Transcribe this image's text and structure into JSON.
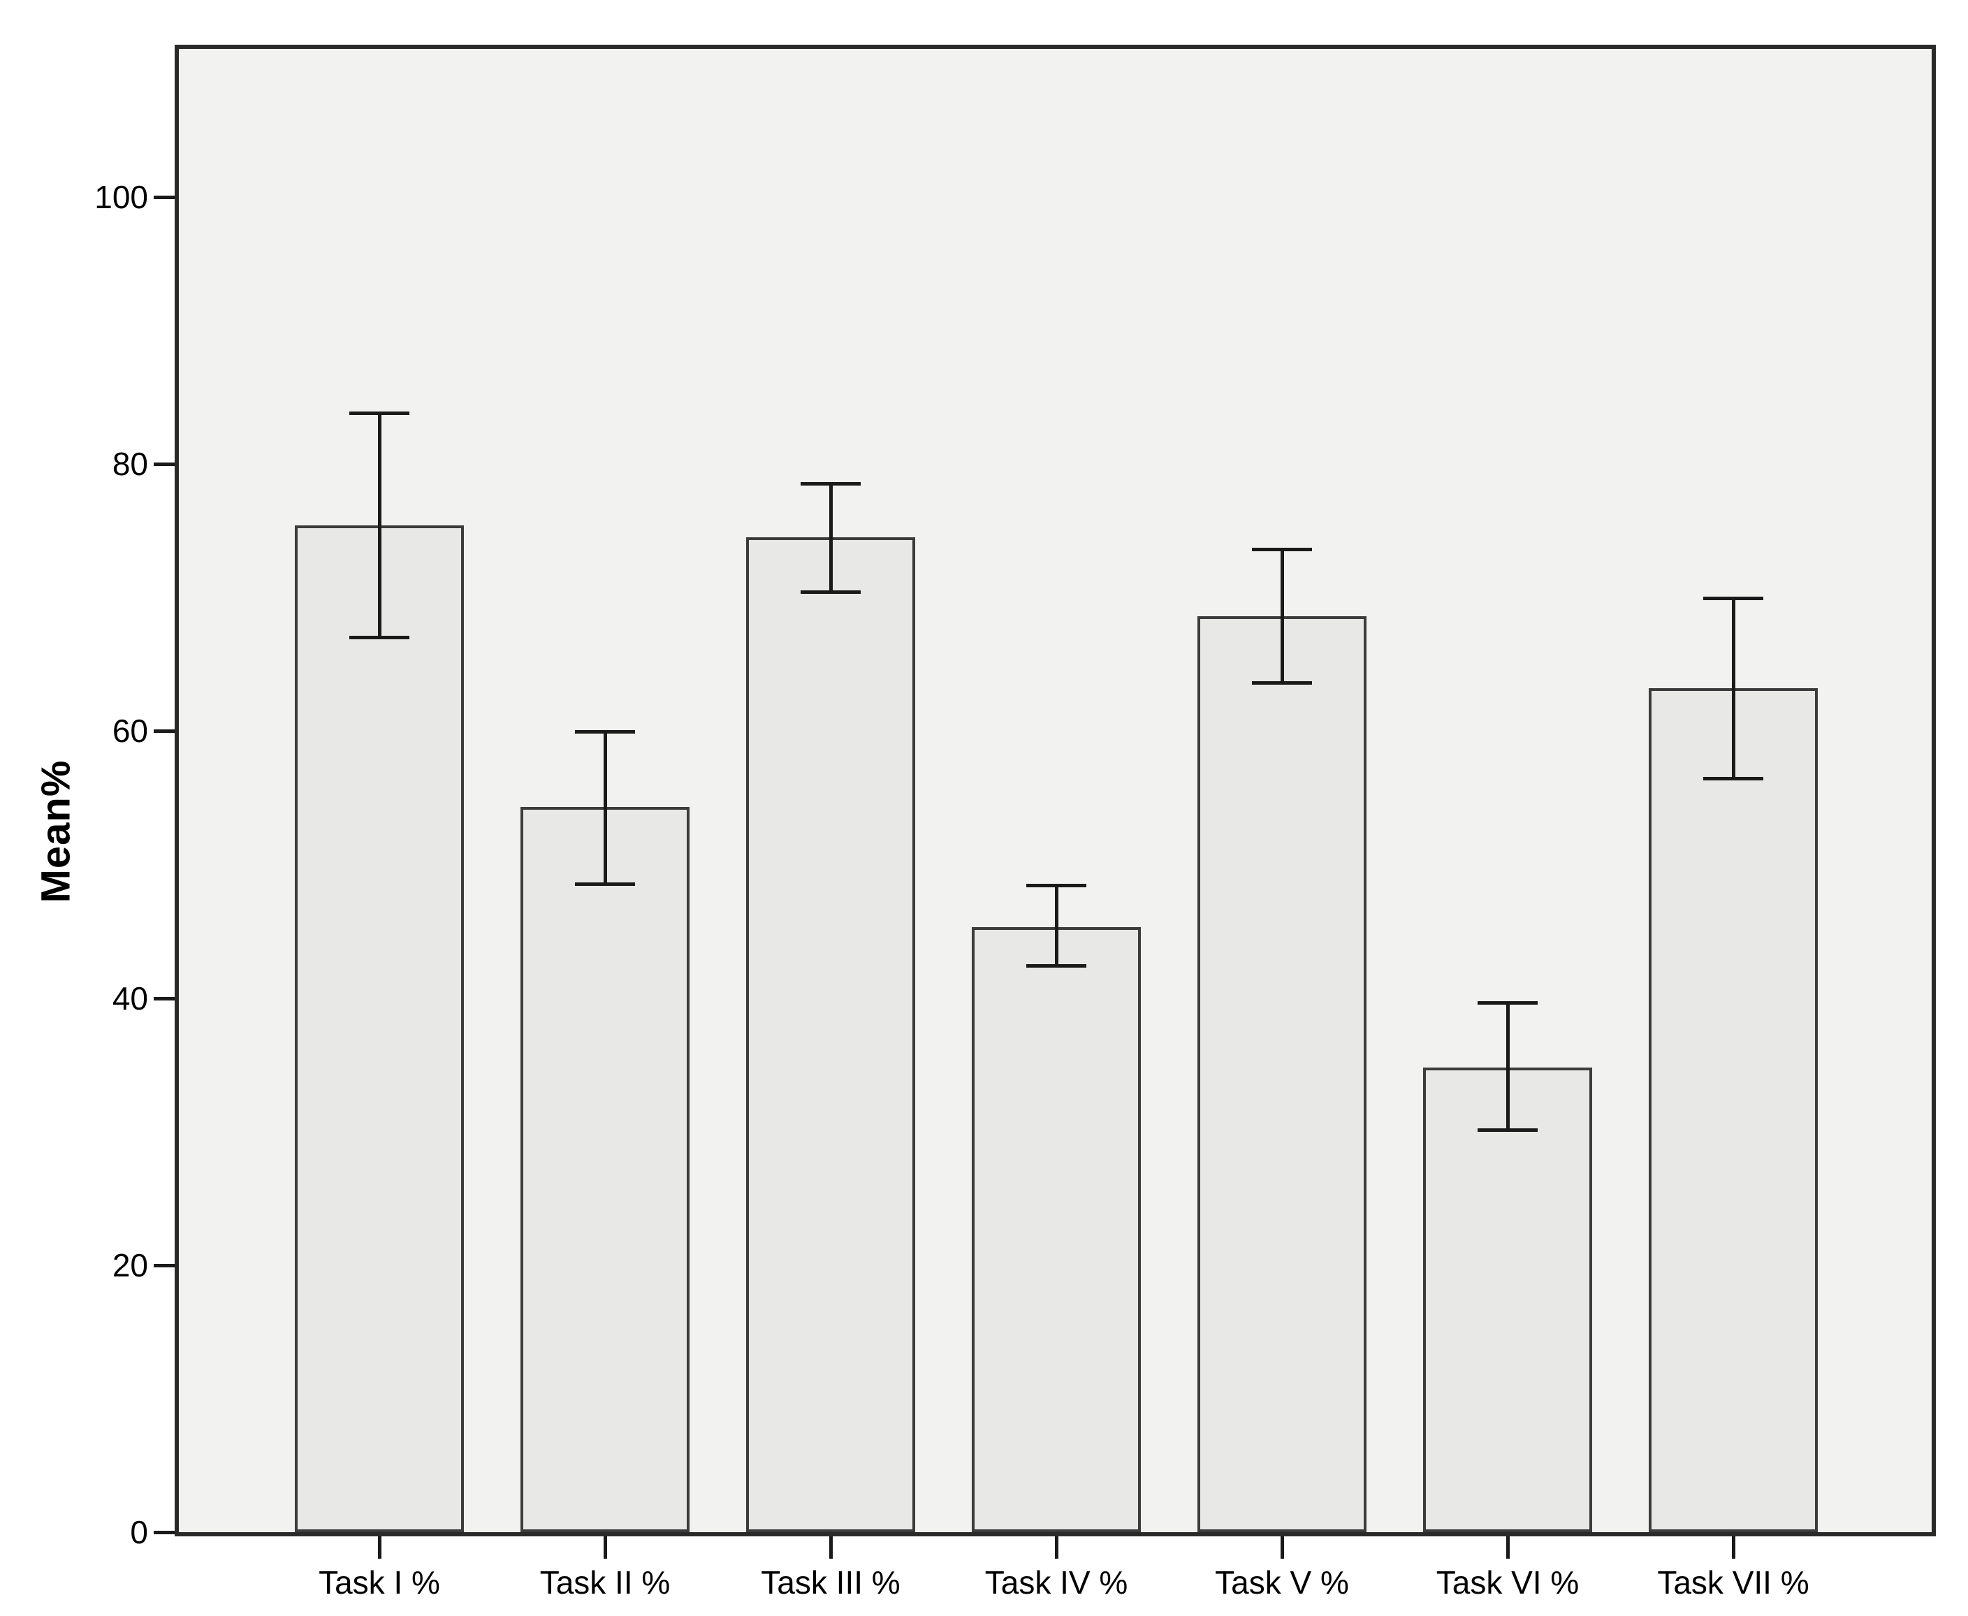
{
  "figure": {
    "background_color": "#ffffff",
    "plot_background_color": "#f2f2f0",
    "bar_fill_color": "#e8e8e6",
    "bar_border_color": "#3c3c3c",
    "frame_color": "#2a2a2a",
    "error_bar_color": "#1a1a1a",
    "text_color": "#000000"
  },
  "chart_data": {
    "type": "bar",
    "title": "",
    "xlabel": "",
    "ylabel": "Mean%",
    "categories": [
      "Task I %",
      "Task II %",
      "Task III %",
      "Task IV %",
      "Task V %",
      "Task VI %",
      "Task VII %"
    ],
    "series": [
      {
        "name": "Mean%",
        "values": [
          75.4,
          54.3,
          74.5,
          45.3,
          68.6,
          34.8,
          63.2
        ]
      }
    ],
    "error_bars": {
      "low": [
        67.0,
        48.5,
        70.4,
        42.4,
        63.6,
        30.1,
        56.4
      ],
      "high": [
        83.8,
        59.9,
        78.5,
        48.4,
        73.6,
        39.6,
        69.9
      ]
    },
    "yticks": [
      0,
      20,
      40,
      60,
      80,
      100
    ],
    "ylim": [
      0,
      111
    ],
    "grid": false,
    "legend": "none"
  }
}
